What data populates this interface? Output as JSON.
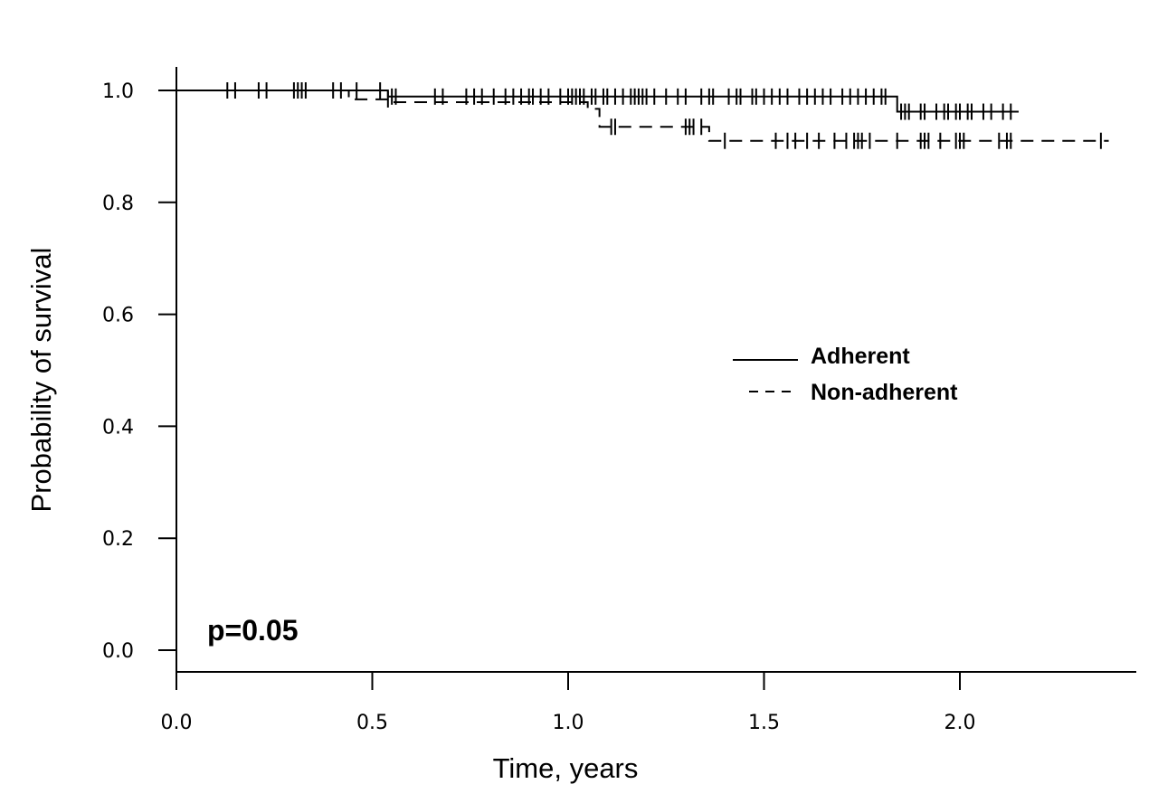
{
  "chart_data": {
    "type": "line",
    "subtype": "kaplan-meier",
    "xlabel": "Time, years",
    "ylabel": "Probability of survival",
    "xlim": [
      0,
      2.45
    ],
    "ylim": [
      0,
      1.0
    ],
    "xticks": [
      "0.0",
      "0.5",
      "1.0",
      "1.5",
      "2.0"
    ],
    "yticks": [
      "0.0",
      "0.2",
      "0.4",
      "0.6",
      "0.8",
      "1.0"
    ],
    "annotation": "p=0.05",
    "legend_position": "center-right",
    "series": [
      {
        "name": "Adherent",
        "style": "solid",
        "steps": [
          [
            0,
            1.0
          ],
          [
            0.54,
            0.989
          ],
          [
            1.84,
            0.962
          ]
        ],
        "end": 2.15,
        "censored": [
          0.13,
          0.15,
          0.21,
          0.23,
          0.3,
          0.31,
          0.32,
          0.33,
          0.4,
          0.42,
          0.46,
          0.52,
          0.55,
          0.56,
          0.66,
          0.68,
          0.74,
          0.76,
          0.78,
          0.81,
          0.84,
          0.86,
          0.88,
          0.9,
          0.91,
          0.93,
          0.95,
          0.98,
          1.0,
          1.01,
          1.02,
          1.03,
          1.04,
          1.06,
          1.07,
          1.09,
          1.1,
          1.12,
          1.14,
          1.16,
          1.17,
          1.18,
          1.19,
          1.2,
          1.22,
          1.25,
          1.28,
          1.3,
          1.34,
          1.36,
          1.37,
          1.41,
          1.43,
          1.44,
          1.47,
          1.48,
          1.5,
          1.52,
          1.54,
          1.56,
          1.59,
          1.61,
          1.63,
          1.65,
          1.67,
          1.7,
          1.72,
          1.74,
          1.76,
          1.78,
          1.8,
          1.81,
          1.85,
          1.86,
          1.87,
          1.9,
          1.91,
          1.94,
          1.96,
          1.97,
          1.99,
          2.0,
          2.02,
          2.03,
          2.06,
          2.08,
          2.11,
          2.13
        ]
      },
      {
        "name": "Non-adherent",
        "style": "dashed",
        "steps": [
          [
            0,
            1.0
          ],
          [
            0.44,
            0.984
          ],
          [
            0.55,
            0.979
          ],
          [
            1.05,
            0.967
          ],
          [
            1.08,
            0.935
          ],
          [
            1.36,
            0.91
          ]
        ],
        "end": 2.38,
        "censored": [
          0.54,
          1.11,
          1.12,
          1.3,
          1.31,
          1.32,
          1.34,
          1.4,
          1.53,
          1.56,
          1.58,
          1.61,
          1.64,
          1.68,
          1.71,
          1.73,
          1.74,
          1.75,
          1.77,
          1.84,
          1.9,
          1.91,
          1.92,
          1.95,
          1.99,
          2.0,
          2.01,
          2.1,
          2.12,
          2.13,
          2.36
        ]
      }
    ]
  }
}
